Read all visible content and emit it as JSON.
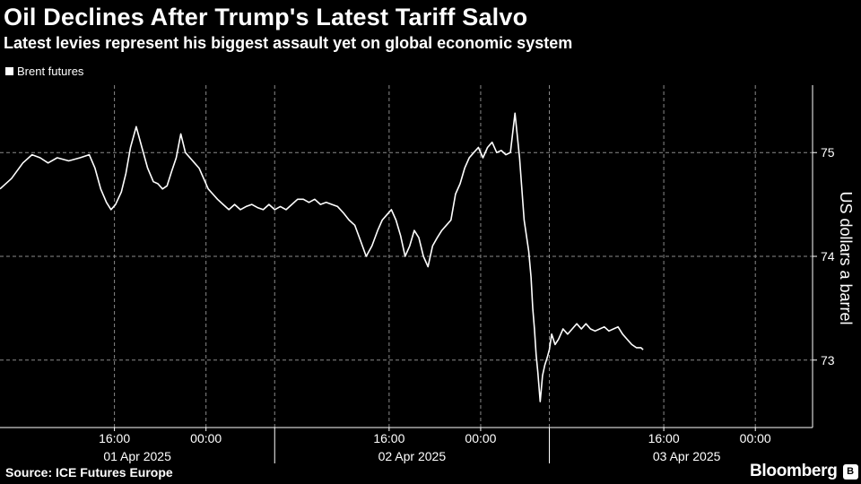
{
  "header": {
    "title": "Oil Declines After Trump's Latest Tariff Salvo",
    "subtitle": "Latest levies represent his biggest assault yet on global economic system"
  },
  "footer": {
    "source": "Source: ICE Futures Europe",
    "brand": "Bloomberg"
  },
  "colors": {
    "background": "#000000",
    "line": "#ffffff",
    "grid": "#8a8a8a"
  },
  "chart_data": {
    "type": "line",
    "title": "Oil Declines After Trump's Latest Tariff Salvo",
    "subtitle": "Latest levies represent his biggest assault yet on global economic system",
    "ylabel": "US dollars a barrel",
    "xlabel": "",
    "ylim": [
      72.35,
      75.65
    ],
    "xlim": [
      6.0,
      77.0
    ],
    "x_unit": "hours since 01 Apr 2025 00:00",
    "grid": true,
    "legend_position": "top-left",
    "yticks": [
      {
        "value": 73,
        "label": "73"
      },
      {
        "value": 74,
        "label": "74"
      },
      {
        "value": 75,
        "label": "75"
      }
    ],
    "xticks": [
      {
        "hours": 16,
        "label": "16:00"
      },
      {
        "hours": 24,
        "label": "00:00"
      },
      {
        "hours": 40,
        "label": "16:00"
      },
      {
        "hours": 48,
        "label": "00:00"
      },
      {
        "hours": 64,
        "label": "16:00"
      },
      {
        "hours": 72,
        "label": "00:00"
      }
    ],
    "day_labels": [
      {
        "hours": 18,
        "label": "01 Apr 2025"
      },
      {
        "hours": 42,
        "label": "02 Apr 2025"
      },
      {
        "hours": 66,
        "label": "03 Apr 2025"
      }
    ],
    "day_separators": [
      30,
      54
    ],
    "series": [
      {
        "name": "Brent futures",
        "x": [
          6.0,
          7.0,
          8.0,
          8.8,
          9.5,
          10.2,
          11.0,
          12.0,
          13.0,
          13.8,
          14.3,
          14.8,
          15.3,
          15.7,
          16.1,
          16.6,
          17.0,
          17.4,
          17.9,
          18.4,
          18.9,
          19.4,
          19.8,
          20.2,
          20.6,
          21.0,
          21.4,
          21.8,
          22.2,
          22.6,
          23.0,
          23.4,
          23.8,
          24.2,
          24.6,
          25.0,
          25.5,
          26.0,
          26.5,
          27.0,
          27.5,
          28.0,
          28.5,
          29.0,
          29.5,
          30.0,
          30.5,
          31.0,
          31.5,
          32.0,
          32.5,
          33.0,
          33.5,
          34.0,
          34.5,
          35.0,
          35.5,
          36.0,
          36.5,
          37.0,
          37.5,
          38.0,
          38.5,
          39.0,
          39.4,
          39.8,
          40.2,
          40.6,
          41.0,
          41.4,
          41.8,
          42.2,
          42.6,
          43.0,
          43.4,
          43.8,
          44.2,
          44.6,
          45.0,
          45.4,
          45.8,
          46.2,
          46.6,
          47.0,
          47.4,
          47.8,
          48.2,
          48.6,
          49.0,
          49.4,
          49.8,
          50.2,
          50.6,
          51.0,
          51.4,
          51.8,
          52.2,
          52.4,
          52.55,
          52.7,
          52.85,
          53.0,
          53.2,
          53.4,
          53.6,
          53.8,
          54.0,
          54.2,
          54.5,
          54.8,
          55.2,
          55.6,
          56.0,
          56.4,
          56.8,
          57.2,
          57.6,
          58.0,
          58.4,
          58.8,
          59.2,
          59.6,
          60.0,
          60.4,
          60.8,
          61.2,
          61.6,
          62.0,
          62.2
        ],
        "values": [
          74.65,
          74.75,
          74.9,
          74.98,
          74.95,
          74.9,
          74.95,
          74.92,
          74.95,
          74.98,
          74.85,
          74.65,
          74.52,
          74.45,
          74.5,
          74.62,
          74.8,
          75.05,
          75.25,
          75.05,
          74.85,
          74.72,
          74.7,
          74.65,
          74.68,
          74.82,
          74.95,
          75.18,
          75.0,
          74.95,
          74.9,
          74.85,
          74.75,
          74.65,
          74.6,
          74.55,
          74.5,
          74.45,
          74.5,
          74.45,
          74.48,
          74.5,
          74.47,
          74.45,
          74.5,
          74.45,
          74.48,
          74.45,
          74.5,
          74.55,
          74.55,
          74.52,
          74.55,
          74.5,
          74.52,
          74.5,
          74.48,
          74.42,
          74.35,
          74.3,
          74.15,
          74.0,
          74.1,
          74.25,
          74.35,
          74.4,
          74.45,
          74.35,
          74.2,
          74.0,
          74.1,
          74.25,
          74.18,
          74.0,
          73.9,
          74.1,
          74.18,
          74.25,
          74.3,
          74.35,
          74.6,
          74.7,
          74.85,
          74.95,
          75.0,
          75.05,
          74.95,
          75.05,
          75.1,
          75.0,
          75.02,
          74.98,
          75.0,
          75.38,
          74.95,
          74.35,
          74.05,
          73.8,
          73.5,
          73.3,
          73.05,
          72.88,
          72.6,
          72.85,
          72.95,
          73.02,
          73.1,
          73.25,
          73.15,
          73.2,
          73.3,
          73.25,
          73.3,
          73.35,
          73.3,
          73.35,
          73.3,
          73.28,
          73.3,
          73.32,
          73.28,
          73.3,
          73.32,
          73.25,
          73.2,
          73.15,
          73.12,
          73.12,
          73.1
        ]
      }
    ]
  }
}
